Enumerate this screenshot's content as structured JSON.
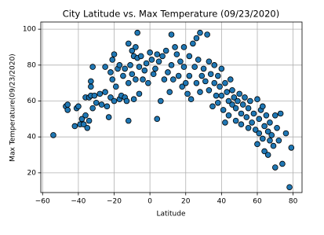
{
  "chart_data": {
    "type": "scatter",
    "title": "City Latitude vs. Max Temperature (09/23/2020)",
    "x_label": "Latitude",
    "y_label": "Max Temperature(09/23/2020)",
    "color": "#1f77b4",
    "edge_color": "#000000",
    "grid": true,
    "xlim": [
      -61,
      85
    ],
    "ylim": [
      9,
      104
    ],
    "xticks": [
      {
        "value": -60,
        "label": "−60"
      },
      {
        "value": -40,
        "label": "−40"
      },
      {
        "value": -20,
        "label": "−20"
      },
      0,
      20,
      40,
      60,
      80
    ],
    "yticks": [
      20,
      40,
      60,
      80,
      100
    ],
    "x": [
      -54,
      -47,
      -46,
      -46,
      -42,
      -41,
      -40,
      -39,
      -38,
      -37,
      -36,
      -36,
      -35,
      -34,
      -34,
      -33,
      -33,
      -33,
      -32,
      -32,
      -31,
      -30,
      -28,
      -27,
      -25,
      -25,
      -24,
      -23,
      -22,
      -22,
      -21,
      -21,
      -20,
      -20,
      -19,
      -18,
      -17,
      -17,
      -16,
      -15,
      -14,
      -14,
      -13,
      -12,
      -12,
      -12,
      -11,
      -10,
      -10,
      -9,
      -9,
      -8,
      -8,
      -7,
      -7,
      -6,
      -6,
      -5,
      -4,
      -3,
      -2,
      -1,
      0,
      1,
      2,
      3,
      4,
      4,
      5,
      6,
      7,
      8,
      9,
      10,
      11,
      12,
      12,
      13,
      14,
      15,
      16,
      17,
      18,
      19,
      19,
      20,
      21,
      22,
      22,
      23,
      24,
      25,
      26,
      26,
      27,
      28,
      28,
      29,
      30,
      31,
      32,
      33,
      33,
      34,
      35,
      36,
      36,
      37,
      38,
      38,
      39,
      40,
      40,
      41,
      42,
      42,
      43,
      44,
      44,
      45,
      46,
      46,
      47,
      48,
      48,
      49,
      50,
      51,
      51,
      52,
      53,
      54,
      55,
      55,
      56,
      57,
      58,
      59,
      60,
      60,
      61,
      61,
      62,
      63,
      63,
      64,
      64,
      65,
      66,
      66,
      67,
      67,
      68,
      69,
      70,
      70,
      71,
      72,
      73,
      74,
      76,
      78,
      79
    ],
    "y": [
      41,
      57,
      55,
      58,
      46,
      56,
      57,
      47,
      50,
      47,
      62,
      52,
      45,
      62,
      49,
      68,
      71,
      63,
      79,
      56,
      63,
      59,
      64,
      58,
      79,
      65,
      57,
      51,
      76,
      62,
      83,
      72,
      86,
      60,
      68,
      78,
      80,
      61,
      63,
      74,
      78,
      62,
      60,
      92,
      70,
      49,
      80,
      88,
      75,
      85,
      61,
      90,
      72,
      98,
      84,
      79,
      64,
      85,
      72,
      77,
      81,
      70,
      87,
      83,
      75,
      78,
      50,
      86,
      82,
      60,
      85,
      72,
      88,
      76,
      65,
      97,
      80,
      72,
      90,
      86,
      74,
      82,
      68,
      90,
      79,
      70,
      64,
      85,
      74,
      61,
      92,
      79,
      95,
      70,
      83,
      98,
      65,
      74,
      78,
      71,
      97,
      82,
      66,
      75,
      57,
      80,
      70,
      63,
      74,
      59,
      68,
      78,
      63,
      55,
      70,
      48,
      65,
      60,
      52,
      72,
      58,
      66,
      62,
      49,
      56,
      60,
      64,
      53,
      47,
      58,
      62,
      51,
      56,
      45,
      60,
      48,
      53,
      44,
      61,
      36,
      50,
      42,
      55,
      39,
      57,
      46,
      32,
      52,
      43,
      30,
      38,
      48,
      41,
      35,
      23,
      52,
      45,
      38,
      53,
      25,
      42,
      12,
      34
    ]
  }
}
